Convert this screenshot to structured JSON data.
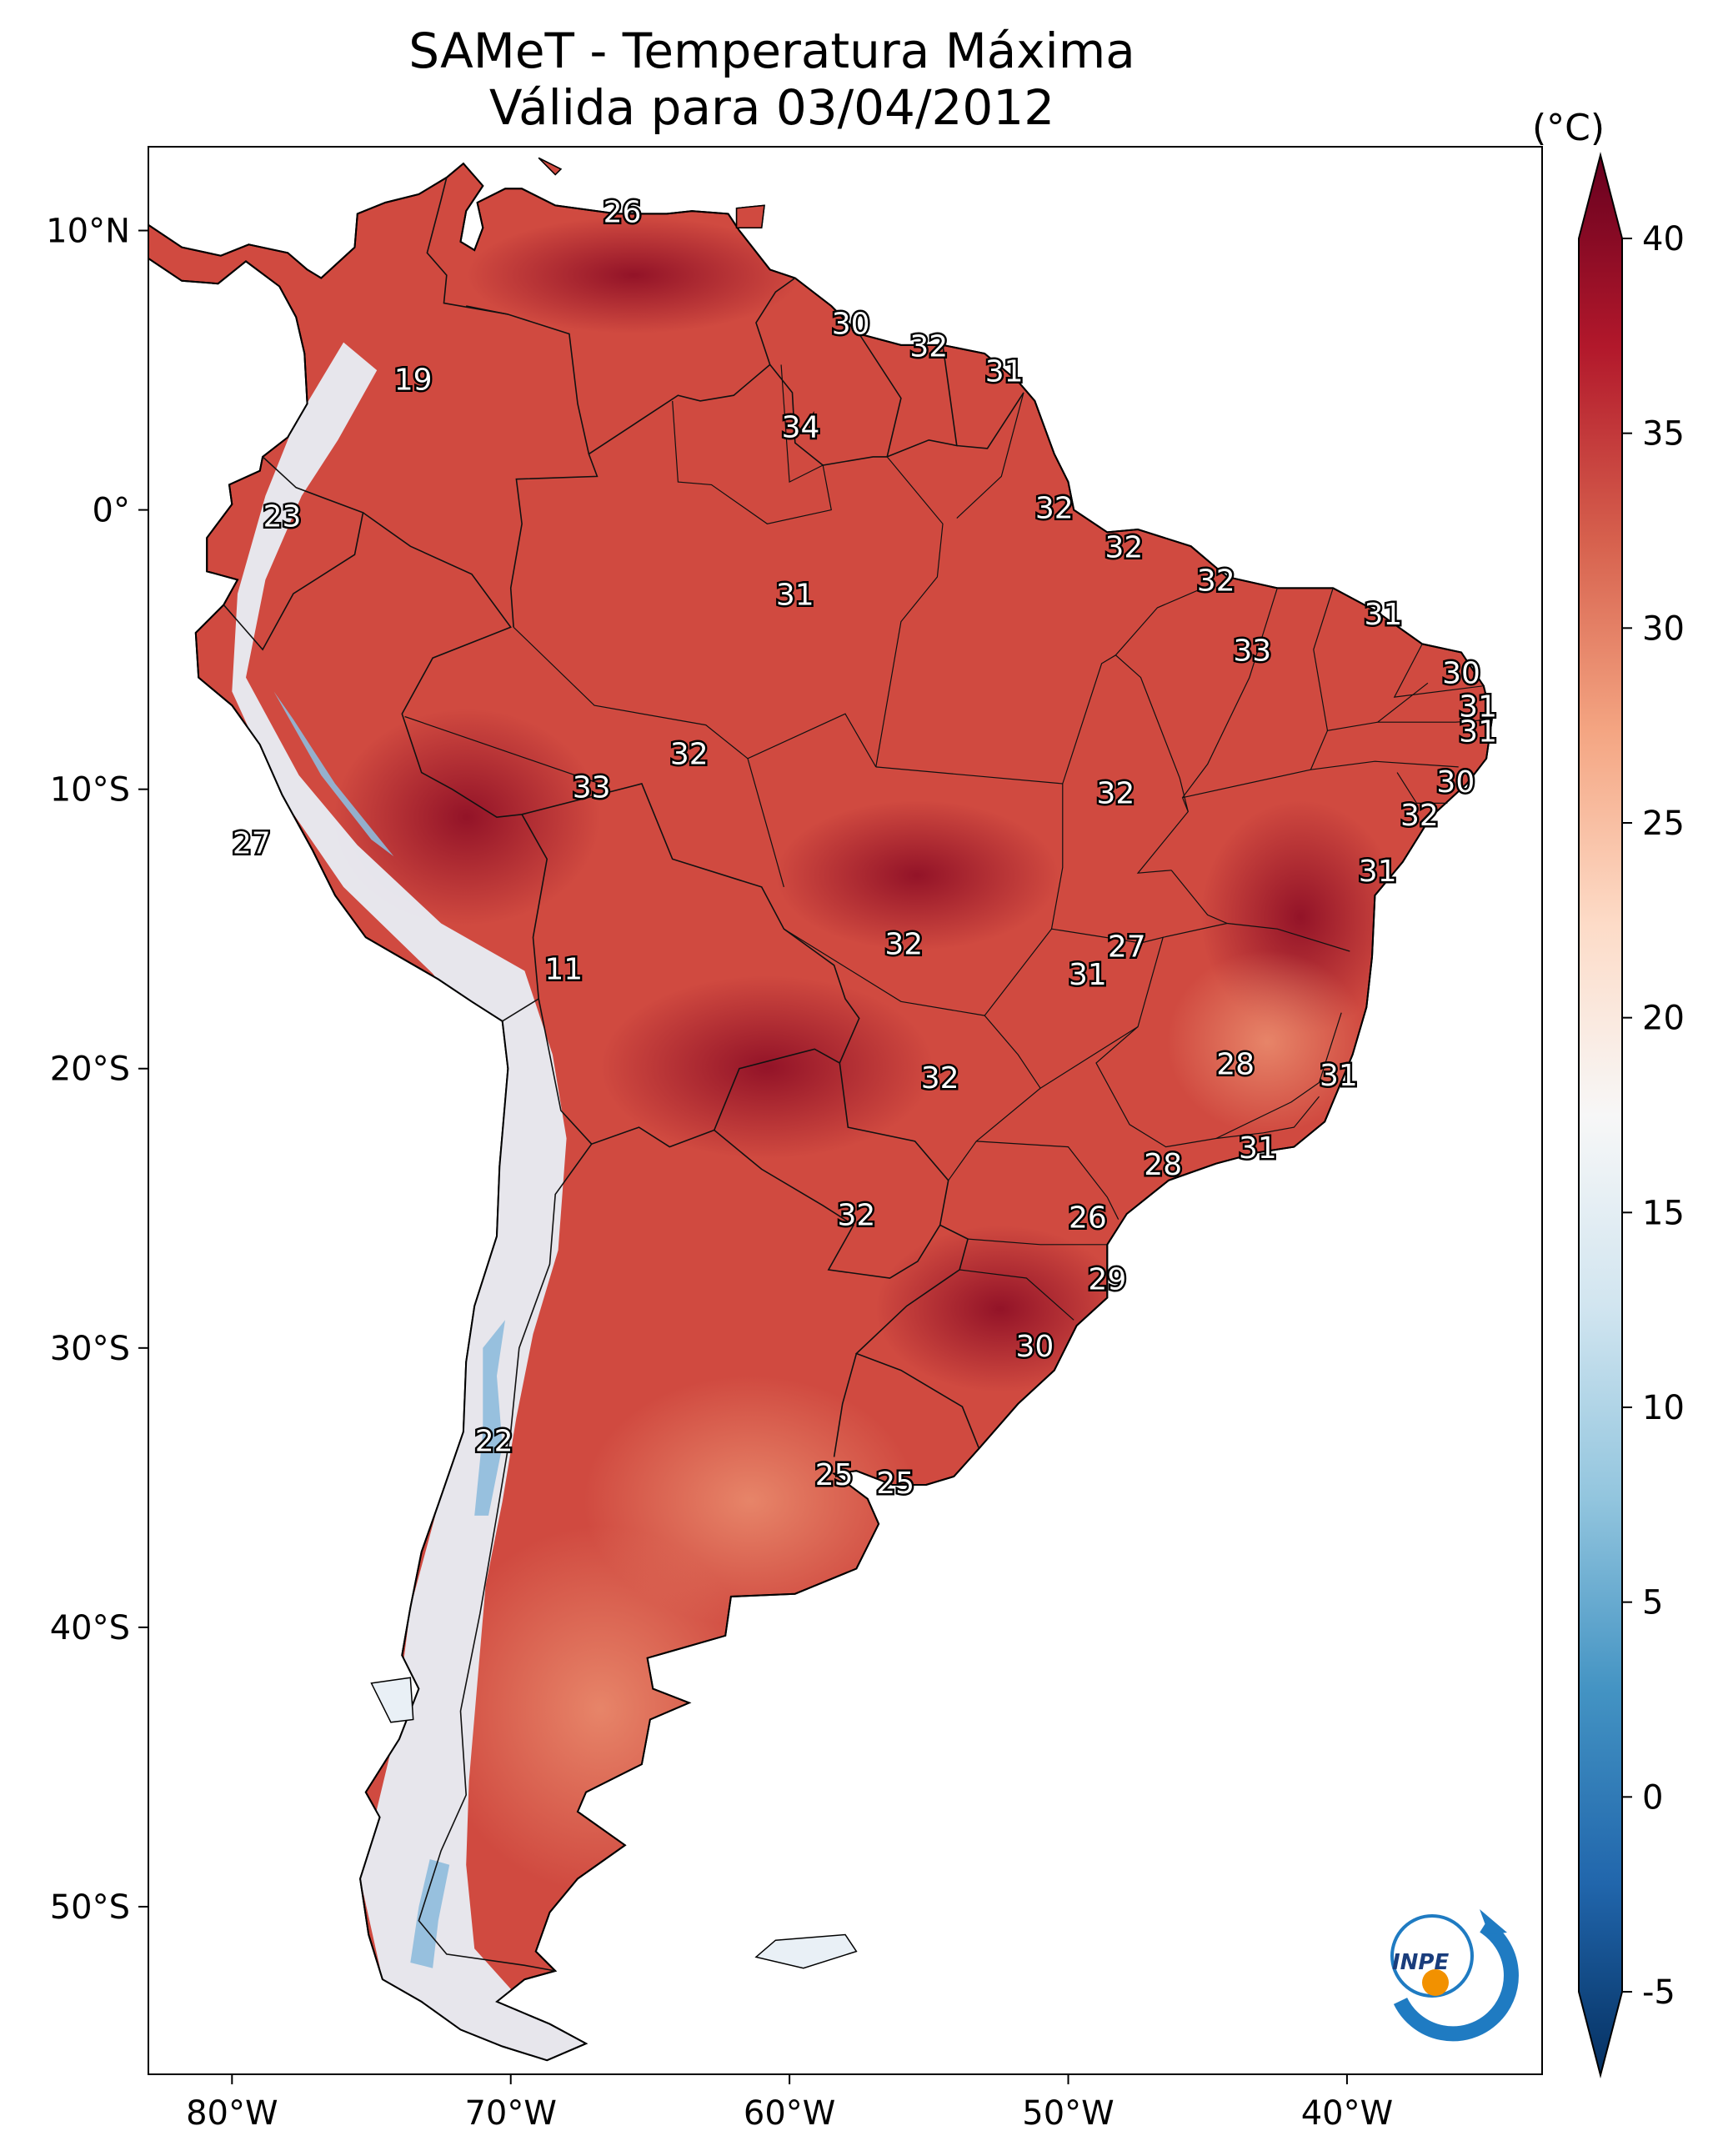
{
  "title": {
    "line1": "SAMeT - Temperatura Máxima",
    "line2": "Válida para 03/04/2012"
  },
  "colorbar": {
    "units": "(°C)",
    "ticks": [
      "40",
      "35",
      "30",
      "25",
      "20",
      "15",
      "10",
      "5",
      "0",
      "-5"
    ],
    "tick_values": [
      40,
      35,
      30,
      25,
      20,
      15,
      10,
      5,
      0,
      -5
    ],
    "range": [
      -5,
      40
    ],
    "extend": "both",
    "colors": [
      "#053061",
      "#2166ac",
      "#4393c3",
      "#92c5de",
      "#d1e5f0",
      "#f7f7f7",
      "#fddbc7",
      "#f4a582",
      "#d6604d",
      "#b2182b",
      "#67001f"
    ]
  },
  "axes": {
    "longitudes": [
      "80°W",
      "70°W",
      "60°W",
      "50°W",
      "40°W"
    ],
    "latitudes": [
      "10°N",
      "0°",
      "10°S",
      "20°S",
      "30°S",
      "40°S",
      "50°S"
    ],
    "lon_range": [
      -83,
      -33
    ],
    "lat_range": [
      -56,
      13
    ]
  },
  "logo": {
    "text": "INPE",
    "color_blue": "#1f7bc2",
    "color_orange": "#f29100"
  },
  "map": {
    "land_color": "#d04a40",
    "hot_color": "#a3142a",
    "cool_color": "#e9f0f6",
    "border_color": "#000000"
  },
  "station_labels": [
    {
      "value": "26",
      "lon": -66.0,
      "lat": 10.6
    },
    {
      "value": "30",
      "lon": -57.8,
      "lat": 6.6
    },
    {
      "value": "32",
      "lon": -55.0,
      "lat": 5.8
    },
    {
      "value": "31",
      "lon": -52.3,
      "lat": 4.9
    },
    {
      "value": "19",
      "lon": -73.5,
      "lat": 4.6
    },
    {
      "value": "34",
      "lon": -59.6,
      "lat": 2.9
    },
    {
      "value": "23",
      "lon": -78.2,
      "lat": -0.3
    },
    {
      "value": "32",
      "lon": -50.5,
      "lat": -0.0
    },
    {
      "value": "32",
      "lon": -48.0,
      "lat": -1.4
    },
    {
      "value": "32",
      "lon": -44.7,
      "lat": -2.6
    },
    {
      "value": "31",
      "lon": -59.8,
      "lat": -3.1
    },
    {
      "value": "31",
      "lon": -38.7,
      "lat": -3.8
    },
    {
      "value": "33",
      "lon": -43.4,
      "lat": -5.1
    },
    {
      "value": "30",
      "lon": -35.9,
      "lat": -5.9
    },
    {
      "value": "31",
      "lon": -35.3,
      "lat": -7.1
    },
    {
      "value": "31",
      "lon": -35.3,
      "lat": -8.0
    },
    {
      "value": "32",
      "lon": -63.6,
      "lat": -8.8
    },
    {
      "value": "33",
      "lon": -67.1,
      "lat": -10.0
    },
    {
      "value": "32",
      "lon": -48.3,
      "lat": -10.2
    },
    {
      "value": "30",
      "lon": -36.1,
      "lat": -9.8
    },
    {
      "value": "32",
      "lon": -37.4,
      "lat": -11.0
    },
    {
      "value": "27",
      "lon": -79.3,
      "lat": -12.0
    },
    {
      "value": "31",
      "lon": -38.9,
      "lat": -13.0
    },
    {
      "value": "32",
      "lon": -55.9,
      "lat": -15.6
    },
    {
      "value": "27",
      "lon": -47.9,
      "lat": -15.7
    },
    {
      "value": "31",
      "lon": -49.3,
      "lat": -16.7
    },
    {
      "value": "11",
      "lon": -68.1,
      "lat": -16.5
    },
    {
      "value": "28",
      "lon": -44.0,
      "lat": -19.9
    },
    {
      "value": "31",
      "lon": -40.3,
      "lat": -20.3
    },
    {
      "value": "32",
      "lon": -54.6,
      "lat": -20.4
    },
    {
      "value": "31",
      "lon": -43.2,
      "lat": -22.9
    },
    {
      "value": "28",
      "lon": -46.6,
      "lat": -23.5
    },
    {
      "value": "32",
      "lon": -57.6,
      "lat": -25.3
    },
    {
      "value": "26",
      "lon": -49.3,
      "lat": -25.4
    },
    {
      "value": "29",
      "lon": -48.6,
      "lat": -27.6
    },
    {
      "value": "30",
      "lon": -51.2,
      "lat": -30.0
    },
    {
      "value": "22",
      "lon": -70.6,
      "lat": -33.4
    },
    {
      "value": "25",
      "lon": -58.4,
      "lat": -34.6
    },
    {
      "value": "25",
      "lon": -56.2,
      "lat": -34.9
    }
  ]
}
